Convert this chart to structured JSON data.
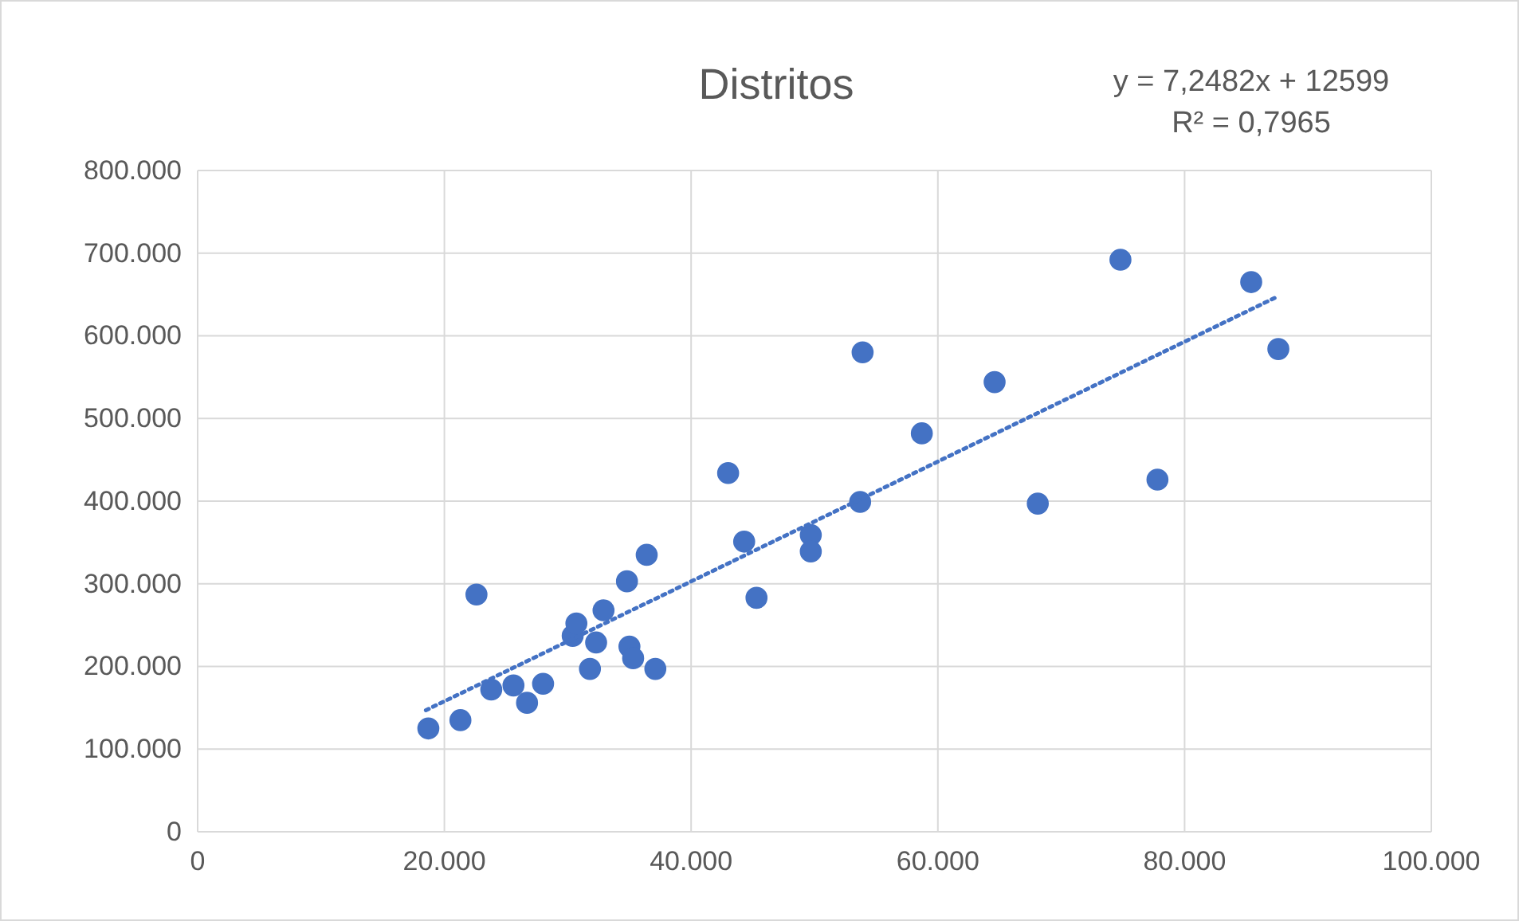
{
  "chart_data": {
    "type": "scatter",
    "title": "Distritos",
    "annotations": [
      "y = 7,2482x + 12599",
      "R² = 0,7965"
    ],
    "xlim": [
      0,
      100000
    ],
    "ylim": [
      0,
      800000
    ],
    "xticks": [
      0,
      {
        "value": 20000,
        "label": "20.000"
      },
      {
        "value": 40000,
        "label": "40.000"
      },
      {
        "value": 60000,
        "label": "60.000"
      },
      {
        "value": 80000,
        "label": "80.000"
      },
      {
        "value": 100000,
        "label": "100.000"
      }
    ],
    "yticks": [
      0,
      {
        "value": 100000,
        "label": "100.000"
      },
      {
        "value": 200000,
        "label": "200.000"
      },
      {
        "value": 300000,
        "label": "300.000"
      },
      {
        "value": 400000,
        "label": "400.000"
      },
      {
        "value": 500000,
        "label": "500.000"
      },
      {
        "value": 600000,
        "label": "600.000"
      },
      {
        "value": 700000,
        "label": "700.000"
      },
      {
        "value": 800000,
        "label": "800.000"
      }
    ],
    "grid": true,
    "series": [
      {
        "color": "#4472c4",
        "marker": "circle",
        "x": [
          18700,
          21300,
          22600,
          23800,
          25600,
          26700,
          28000,
          30400,
          30700,
          31800,
          32300,
          32900,
          34800,
          35000,
          35300,
          36400,
          37100,
          43000,
          44300,
          45300,
          49700,
          49700,
          53700,
          53900,
          58700,
          64600,
          68100,
          74800,
          77800,
          85400,
          87600
        ],
        "values": [
          125000,
          135000,
          287000,
          172000,
          177000,
          156000,
          179000,
          237000,
          252000,
          197000,
          229000,
          268000,
          303000,
          224000,
          210000,
          335000,
          197000,
          434000,
          351000,
          283000,
          359000,
          339000,
          399000,
          580000,
          482000,
          544000,
          397000,
          692000,
          426000,
          665000,
          584000
        ]
      },
      {
        "type": "line",
        "color": "#4472c4",
        "line_style": "dotted",
        "x": [
          18500,
          87600
        ],
        "values": [
          147000,
          648000
        ]
      }
    ]
  }
}
